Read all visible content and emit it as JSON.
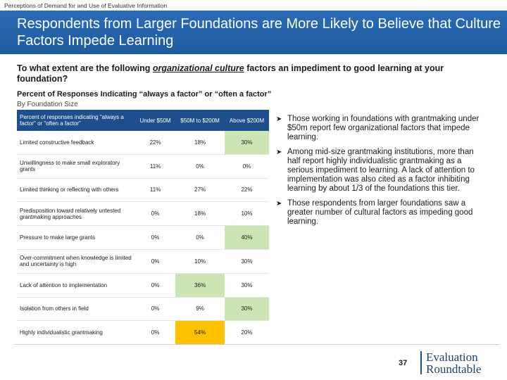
{
  "header": {
    "kicker": "Perceptions of Demand for and Use of Evaluative Information",
    "title": "Respondents from Larger Foundations are More Likely to Believe that Culture Factors Impede Learning"
  },
  "question": {
    "before": "To what extent are the following ",
    "emphasis": "organizational culture",
    "after": " factors an impediment to good learning at your foundation?"
  },
  "chart_title": "Percent of Responses Indicating “always a factor” or “often a factor”",
  "chart_subtitle": "By Foundation Size",
  "table": {
    "columns": [
      "Percent of responses indicating \"always a factor\" or \"often a factor\"",
      "Under $50M",
      "$50M to $200M",
      "Above $200M"
    ],
    "rows": [
      {
        "label": "Limited constructive feedback",
        "values": [
          "22%",
          "18%",
          "30%"
        ],
        "highlight": [
          null,
          null,
          "green"
        ]
      },
      {
        "label": "Unwillingness to make small exploratory grants",
        "values": [
          "11%",
          "0%",
          "0%"
        ],
        "highlight": [
          null,
          null,
          null
        ]
      },
      {
        "label": "Limited thinking or reflecting with others",
        "values": [
          "11%",
          "27%",
          "22%"
        ],
        "highlight": [
          null,
          null,
          null
        ]
      },
      {
        "label": "Predisposition toward relatively untested grantmaking approaches",
        "values": [
          "0%",
          "18%",
          "10%"
        ],
        "highlight": [
          null,
          null,
          null
        ]
      },
      {
        "label": "Pressure to make large grants",
        "values": [
          "0%",
          "0%",
          "40%"
        ],
        "highlight": [
          null,
          null,
          "green"
        ]
      },
      {
        "label": "Over-commitment when knowledge is limited and uncertainty is high",
        "values": [
          "0%",
          "10%",
          "30%"
        ],
        "highlight": [
          null,
          null,
          null
        ]
      },
      {
        "label": "Lack of attention to implementation",
        "values": [
          "0%",
          "36%",
          "30%"
        ],
        "highlight": [
          null,
          "green",
          null
        ]
      },
      {
        "label": "Isolation from others in field",
        "values": [
          "0%",
          "9%",
          "30%"
        ],
        "highlight": [
          null,
          null,
          "green"
        ]
      },
      {
        "label": "Highly individualistic grantmaking",
        "values": [
          "0%",
          "54%",
          "20%"
        ],
        "highlight": [
          null,
          "yellow",
          null
        ]
      }
    ]
  },
  "bullets": [
    "Those working in foundations with grantmaking under $50m report few organizational factors that impede learning.",
    "Among mid-size grantmaking institutions, more than half report highly individualistic grantmaking as a serious impediment to learning. A lack of attention to implementation was also cited as a factor inhibiting learning by about 1/3 of the foundations this tier.",
    "Those respondents from larger foundations saw a greater number of cultural factors as impeding good learning."
  ],
  "footer": {
    "page_number": "37",
    "logo_line1": "Evaluation",
    "logo_line2": "Roundtable"
  },
  "colors": {
    "banner": "#2a6cb6",
    "table_header": "#1f4e8c",
    "highlight_green": "#cbe6b4",
    "highlight_yellow": "#ffc000"
  }
}
